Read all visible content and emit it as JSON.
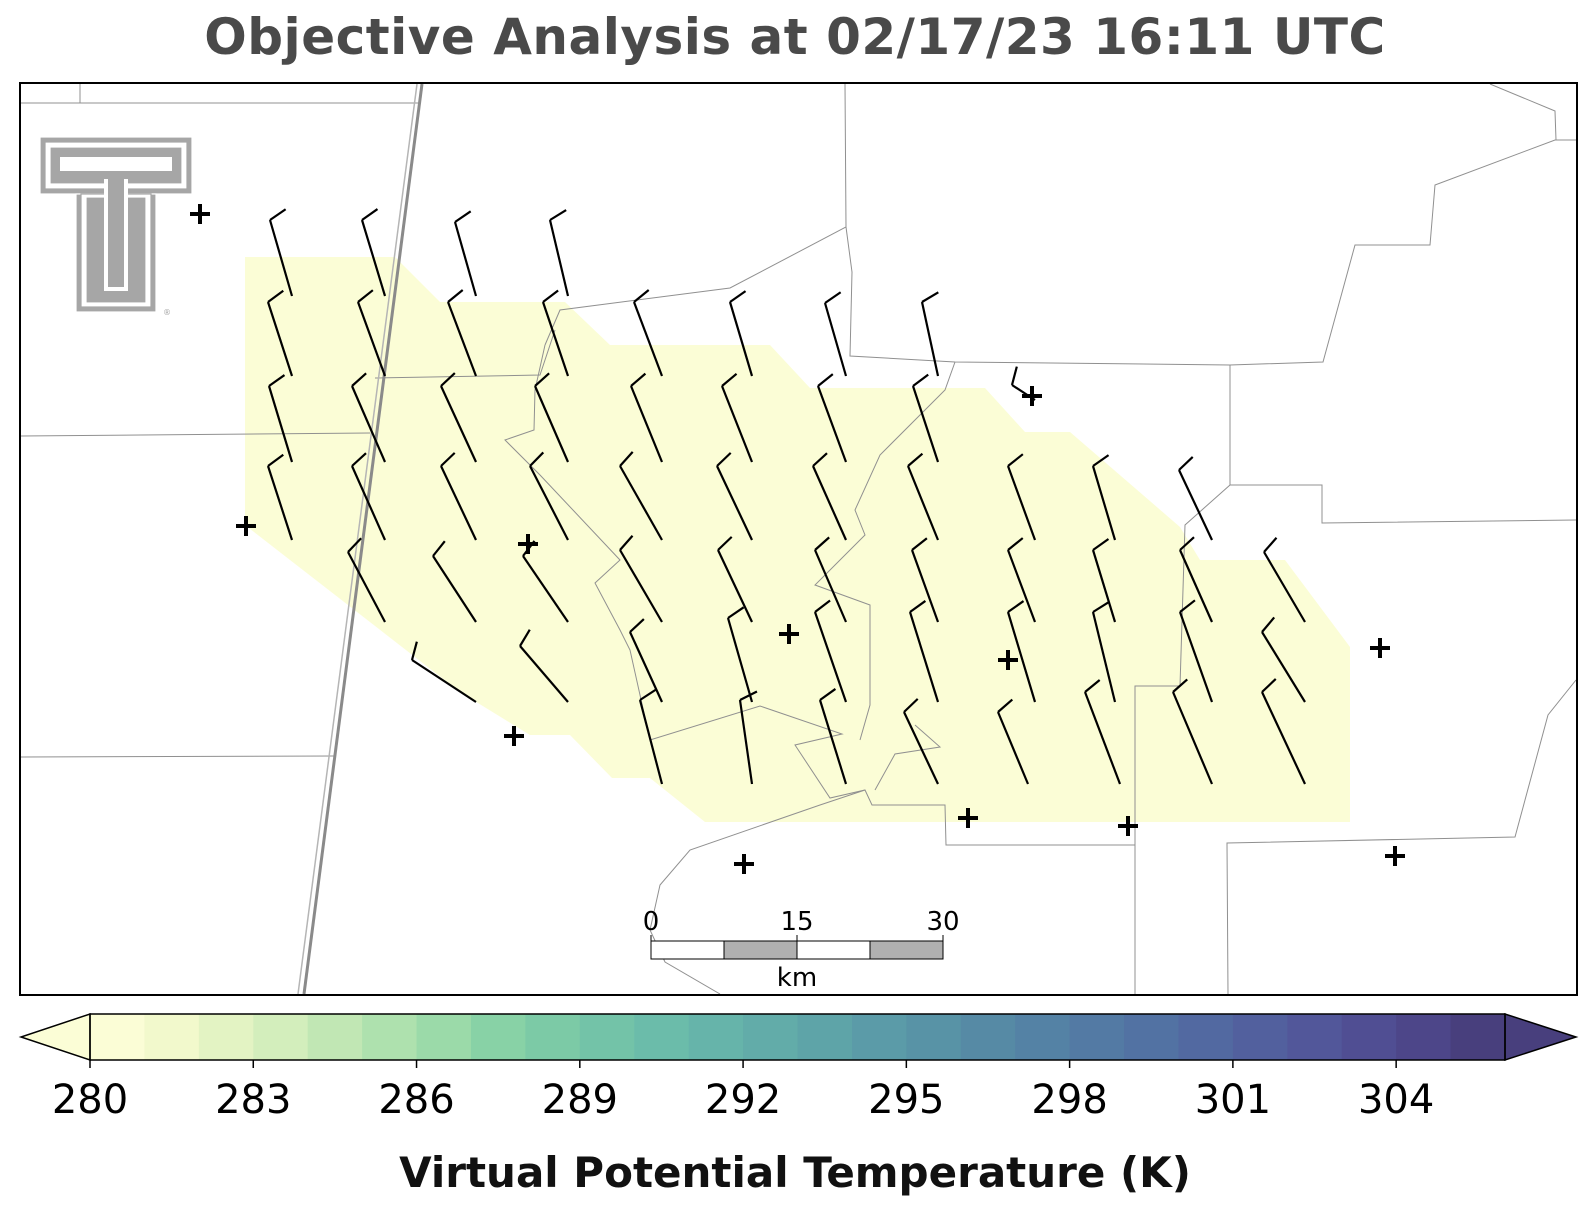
{
  "title": "Objective Analysis at 02/17/23 16:11 UTC",
  "colorbar": {
    "label": "Virtual Potential Temperature (K)",
    "min": 280,
    "max": 306,
    "ticks": [
      "280",
      "283",
      "286",
      "289",
      "292",
      "295",
      "298",
      "301",
      "304"
    ],
    "tick_values": [
      280,
      283,
      286,
      289,
      292,
      295,
      298,
      301,
      304
    ],
    "levels": 26,
    "extend": "both",
    "colormap": "crest-like",
    "colors": [
      "#fbfdd6",
      "#f2f9cc",
      "#e3f3c3",
      "#d3eebc",
      "#c1e7b4",
      "#aee1ae",
      "#9bdaa9",
      "#88d2a6",
      "#7ccaa6",
      "#73c3a8",
      "#6bbcaa",
      "#66b4aa",
      "#62aca9",
      "#5ea4a8",
      "#5b9ba8",
      "#5893a6",
      "#568aa5",
      "#5482a5",
      "#537aa4",
      "#5272a3",
      "#5269a1",
      "#52609e",
      "#52579a",
      "#504e93",
      "#4d4689",
      "#483f7d"
    ]
  },
  "scale_bar": {
    "ticks": [
      "0",
      "15",
      "30"
    ],
    "unit": "km"
  },
  "logo": {
    "text": "Texas Tech Double T",
    "color": "#a6a6a6"
  },
  "analysis_field": {
    "value_k": 280,
    "color": "#fbfdd6"
  },
  "station_marker": "+",
  "wind_barb_color": "#000000",
  "border_color": "#8a8a8a"
}
